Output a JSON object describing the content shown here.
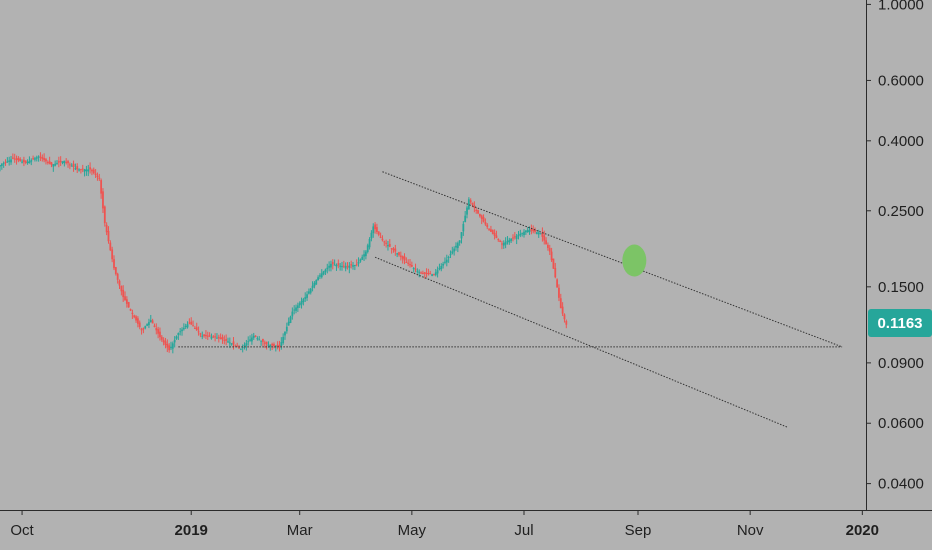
{
  "chart_data": {
    "type": "candlestick",
    "scale": "log",
    "grid": false,
    "background": "#b2b2b2",
    "colors": {
      "up": "#26a69a",
      "down": "#ef5350",
      "badge": "#26a69a",
      "trendline": "#333333",
      "marker": "#7cc466"
    },
    "y_ticks": [
      "1.0000",
      "0.6000",
      "0.4000",
      "0.2500",
      "0.1500",
      "0.0900",
      "0.0600",
      "0.0400"
    ],
    "y_tick_values": [
      1.0,
      0.6,
      0.4,
      0.25,
      0.15,
      0.09,
      0.06,
      0.04
    ],
    "ylim": [
      0.0335,
      1.03
    ],
    "x_ticks": [
      {
        "label": "Oct",
        "date": "2018-10-01",
        "bold": false
      },
      {
        "label": "2019",
        "date": "2019-01-01",
        "bold": true
      },
      {
        "label": "Mar",
        "date": "2019-03-01",
        "bold": false
      },
      {
        "label": "May",
        "date": "2019-05-01",
        "bold": false
      },
      {
        "label": "Jul",
        "date": "2019-07-01",
        "bold": false
      },
      {
        "label": "Sep",
        "date": "2019-09-01",
        "bold": false
      },
      {
        "label": "Nov",
        "date": "2019-11-01",
        "bold": false
      },
      {
        "label": "2020",
        "date": "2020-01-01",
        "bold": true
      }
    ],
    "xlim": [
      "2018-09-19",
      "2020-01-03"
    ],
    "current_price": "0.1163",
    "price_path": [
      [
        "2018-09-19",
        0.34
      ],
      [
        "2018-09-26",
        0.355
      ],
      [
        "2018-10-03",
        0.345
      ],
      [
        "2018-10-10",
        0.36
      ],
      [
        "2018-10-17",
        0.34
      ],
      [
        "2018-10-24",
        0.35
      ],
      [
        "2018-10-31",
        0.33
      ],
      [
        "2018-11-07",
        0.33
      ],
      [
        "2018-11-12",
        0.31
      ],
      [
        "2018-11-15",
        0.23
      ],
      [
        "2018-11-20",
        0.17
      ],
      [
        "2018-11-25",
        0.14
      ],
      [
        "2018-11-30",
        0.125
      ],
      [
        "2018-12-05",
        0.112
      ],
      [
        "2018-12-10",
        0.12
      ],
      [
        "2018-12-15",
        0.107
      ],
      [
        "2018-12-20",
        0.098
      ],
      [
        "2018-12-25",
        0.11
      ],
      [
        "2018-12-31",
        0.118
      ],
      [
        "2019-01-07",
        0.108
      ],
      [
        "2019-01-14",
        0.107
      ],
      [
        "2019-01-21",
        0.104
      ],
      [
        "2019-01-28",
        0.099
      ],
      [
        "2019-02-04",
        0.108
      ],
      [
        "2019-02-11",
        0.102
      ],
      [
        "2019-02-18",
        0.1
      ],
      [
        "2019-02-25",
        0.127
      ],
      [
        "2019-03-04",
        0.14
      ],
      [
        "2019-03-11",
        0.16
      ],
      [
        "2019-03-18",
        0.175
      ],
      [
        "2019-03-25",
        0.172
      ],
      [
        "2019-04-01",
        0.174
      ],
      [
        "2019-04-06",
        0.19
      ],
      [
        "2019-04-10",
        0.225
      ],
      [
        "2019-04-15",
        0.205
      ],
      [
        "2019-04-22",
        0.19
      ],
      [
        "2019-04-29",
        0.175
      ],
      [
        "2019-05-06",
        0.164
      ],
      [
        "2019-05-13",
        0.163
      ],
      [
        "2019-05-20",
        0.18
      ],
      [
        "2019-05-27",
        0.205
      ],
      [
        "2019-06-01",
        0.27
      ],
      [
        "2019-06-05",
        0.25
      ],
      [
        "2019-06-12",
        0.22
      ],
      [
        "2019-06-19",
        0.2
      ],
      [
        "2019-06-26",
        0.21
      ],
      [
        "2019-07-03",
        0.22
      ],
      [
        "2019-07-10",
        0.215
      ],
      [
        "2019-07-15",
        0.19
      ],
      [
        "2019-07-18",
        0.16
      ],
      [
        "2019-07-21",
        0.13
      ],
      [
        "2019-07-24",
        0.1163
      ]
    ],
    "annotations": [
      {
        "type": "trendline",
        "name": "descending-channel-upper",
        "from": [
          "2019-04-15",
          0.325
        ],
        "to": [
          "2019-12-21",
          0.1002
        ]
      },
      {
        "type": "trendline",
        "name": "descending-channel-lower",
        "from": [
          "2019-04-11",
          0.183
        ],
        "to": [
          "2019-11-21",
          0.0585
        ]
      },
      {
        "type": "horizontal-line",
        "name": "support-line",
        "from": "2018-12-25",
        "to": "2019-12-21",
        "value": 0.1002
      },
      {
        "type": "marker",
        "name": "target-marker",
        "date": "2019-08-30",
        "value": 0.179
      }
    ]
  }
}
